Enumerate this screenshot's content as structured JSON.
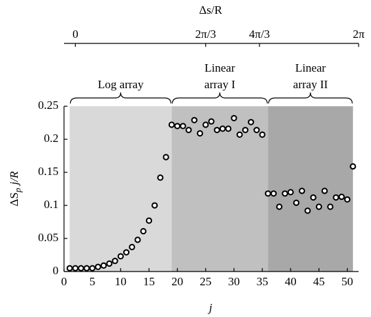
{
  "chart_data": {
    "type": "scatter",
    "xlabel": "j",
    "ylabel": {
      "main": "ΔS",
      "sub": "p",
      "rest": " j/R"
    },
    "x2label": "Δs/R",
    "xlim": [
      0,
      52
    ],
    "ylim": [
      0,
      0.345
    ],
    "xticks": [
      0,
      5,
      10,
      15,
      20,
      25,
      30,
      35,
      40,
      45,
      50
    ],
    "yticks": [
      0,
      0.05,
      0.1,
      0.15,
      0.2,
      0.25
    ],
    "x2ticks": [
      {
        "value": 0,
        "label": "0",
        "at_j": 2
      },
      {
        "value": 2.094,
        "label": "2π/3",
        "at_j": 25
      },
      {
        "value": 4.189,
        "label": "4π/3",
        "at_j": 34.5
      },
      {
        "value": 6.283,
        "label": "2π",
        "at_j": 52
      }
    ],
    "regions": [
      {
        "label": [
          "Log array"
        ],
        "from": 1,
        "to": 19,
        "top": 0.25,
        "color": "#d9d9d9"
      },
      {
        "label": [
          "Linear",
          "array I"
        ],
        "from": 19,
        "to": 36,
        "top": 0.25,
        "color": "#c0c0c0"
      },
      {
        "label": [
          "Linear",
          "array II"
        ],
        "from": 36,
        "to": 51,
        "top": 0.25,
        "color": "#a8a8a8"
      }
    ],
    "series": [
      {
        "color": "#000000",
        "x": [
          1,
          2,
          3,
          4,
          5,
          6,
          7,
          8,
          9,
          10,
          11,
          12,
          13,
          14,
          15,
          16,
          17,
          18,
          19,
          20,
          21,
          22,
          23,
          24,
          25,
          26,
          27,
          28,
          29,
          30,
          31,
          32,
          33,
          34,
          35,
          36,
          37,
          38,
          39,
          40,
          41,
          42,
          43,
          44,
          45,
          46,
          47,
          48,
          49,
          50,
          51
        ],
        "values": [
          0.005,
          0.005,
          0.005,
          0.005,
          0.005,
          0.007,
          0.009,
          0.012,
          0.016,
          0.023,
          0.029,
          0.037,
          0.048,
          0.061,
          0.077,
          0.1,
          0.142,
          0.173,
          0.222,
          0.22,
          0.22,
          0.214,
          0.229,
          0.209,
          0.222,
          0.227,
          0.214,
          0.216,
          0.216,
          0.232,
          0.207,
          0.214,
          0.226,
          0.214,
          0.207,
          0.118,
          0.118,
          0.098,
          0.118,
          0.12,
          0.104,
          0.122,
          0.092,
          0.112,
          0.098,
          0.122,
          0.098,
          0.112,
          0.113,
          0.109,
          0.159
        ]
      }
    ]
  }
}
